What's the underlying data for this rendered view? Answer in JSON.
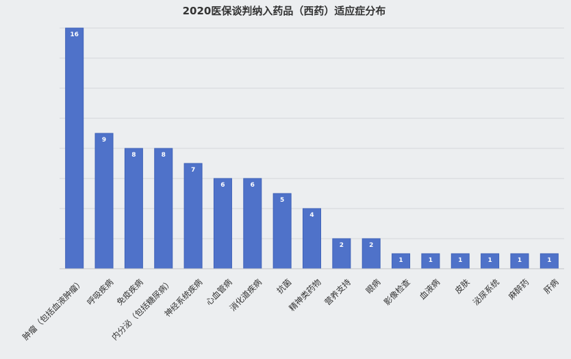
{
  "chart_data": {
    "type": "bar",
    "title": "2020医保谈判纳入药品（西药）适应症分布",
    "categories": [
      "肿瘤（包括血液肿瘤）",
      "呼吸疾病",
      "免疫疾病",
      "内分泌（包括糖尿病）",
      "神经系统疾病",
      "心血管病",
      "消化道疾病",
      "抗菌",
      "精神类药物",
      "营养支持",
      "眼病",
      "影像检查",
      "血液病",
      "皮肤",
      "泌尿系统",
      "麻醉药",
      "肝病"
    ],
    "values": [
      16,
      9,
      8,
      8,
      7,
      6,
      6,
      5,
      4,
      2,
      2,
      1,
      1,
      1,
      1,
      1,
      1
    ],
    "value_labels": [
      "16",
      "9",
      "8",
      "8",
      "7",
      "6",
      "6",
      "5",
      "4",
      "2",
      "2",
      "1",
      "1",
      "1",
      "1",
      "1",
      "1"
    ],
    "ylim": [
      0,
      16
    ],
    "gridline_step": 2,
    "y_tick_labels_shown": false,
    "grid": true,
    "legend": "none",
    "colors": {
      "bar": "#4f72c9",
      "bar_border": "#3f62b8",
      "background": "#eceef0",
      "grid": "#d5d7da",
      "data_label": "#ffffff"
    }
  }
}
